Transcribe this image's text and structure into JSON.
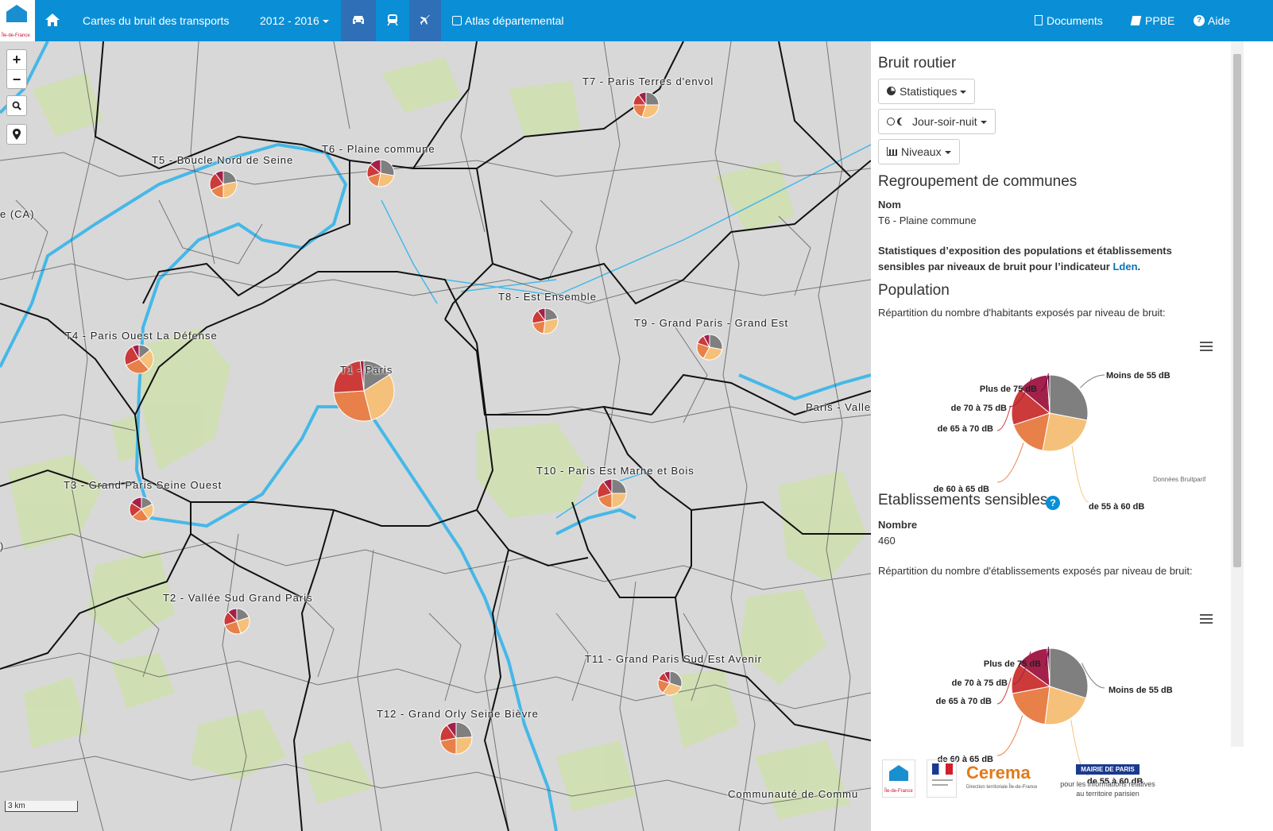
{
  "navbar": {
    "home_icon": "home-icon",
    "brand_caption": "Île-de-France",
    "title": "Cartes du bruit des transports",
    "period": "2012 - 2016",
    "modes": [
      "car-icon",
      "train-icon",
      "plane-icon"
    ],
    "atlas": "Atlas départemental",
    "documents": "Documents",
    "ppbe": "PPBE",
    "help": "Aide"
  },
  "map": {
    "zoom_in": "+",
    "zoom_out": "−",
    "scale": "3 km",
    "labels": [
      {
        "text": "T1 - Paris"
      },
      {
        "text": "T2 - Vallée Sud Grand Paris"
      },
      {
        "text": "T3 - Grand Paris Seine Ouest"
      },
      {
        "text": "T4 - Paris Ouest La Défense"
      },
      {
        "text": "T5 - Boucle Nord de Seine"
      },
      {
        "text": "T6 - Plaine commune"
      },
      {
        "text": "T7 - Paris Terres d'envol"
      },
      {
        "text": "T8 - Est Ensemble"
      },
      {
        "text": "T9 - Grand Paris - Grand Est"
      },
      {
        "text": "T10 - Paris Est Marne et Bois"
      },
      {
        "text": "T11 - Grand Paris Sud Est Avenir"
      },
      {
        "text": "T12 - Grand Orly Seine Bièvre"
      },
      {
        "text": "Paris - Valle"
      },
      {
        "text": "Communauté de Commu"
      },
      {
        "text": "e (CA)"
      },
      {
        "text": ")"
      }
    ]
  },
  "sidebar": {
    "title": "Bruit routier",
    "btn_stats": "Statistiques",
    "btn_period": "Jour-soir-nuit",
    "btn_levels": "Niveaux",
    "group_title": "Regroupement de communes",
    "name_label": "Nom",
    "name_value": "T6 - Plaine commune",
    "desc_1": "Statistiques d’exposition des populations et établissements sensibles par niveaux de bruit pour l’indicateur ",
    "desc_link": "Lden",
    "desc_end": ".",
    "population_title": "Population",
    "population_desc": "Répartition du nombre d'habitants exposés par niveau de bruit:",
    "credits": "Données Bruitparif",
    "etab_title": "Etablissements sensibles",
    "count_label": "Nombre",
    "count_value": "460",
    "etab_desc": "Répartition du nombre d'établissements exposés par niveau de bruit:",
    "footer_caption": "pour les informations relatives au territoire parisien",
    "cerema": "Cerema",
    "cerema_sub": "Direction territoriale Île-de-France",
    "mairie": "MAIRIE DE PARIS"
  },
  "colors": {
    "navbar": "#0a8fd6",
    "moins55": "#7f7f7f",
    "55_60": "#f5c07a",
    "60_65": "#e8804a",
    "65_70": "#cc3a3a",
    "70_75": "#a3204a",
    "plus75": "#5e0a3c"
  },
  "chart_data": [
    {
      "type": "pie",
      "title": "",
      "categories": [
        "Moins de 55 dB",
        "de 55 à 60 dB",
        "de 60 à 65 dB",
        "de 65 à 70 dB",
        "de 70 à 75 dB",
        "Plus de 75 dB"
      ],
      "values": [
        28,
        25,
        17,
        16,
        13,
        1
      ]
    },
    {
      "type": "pie",
      "title": "",
      "categories": [
        "Moins de 55 dB",
        "de 55 à 60 dB",
        "de 60 à 65 dB",
        "de 65 à 70 dB",
        "de 70 à 75 dB",
        "Plus de 75 dB"
      ],
      "values": [
        30,
        22,
        20,
        13,
        14,
        1
      ]
    }
  ]
}
